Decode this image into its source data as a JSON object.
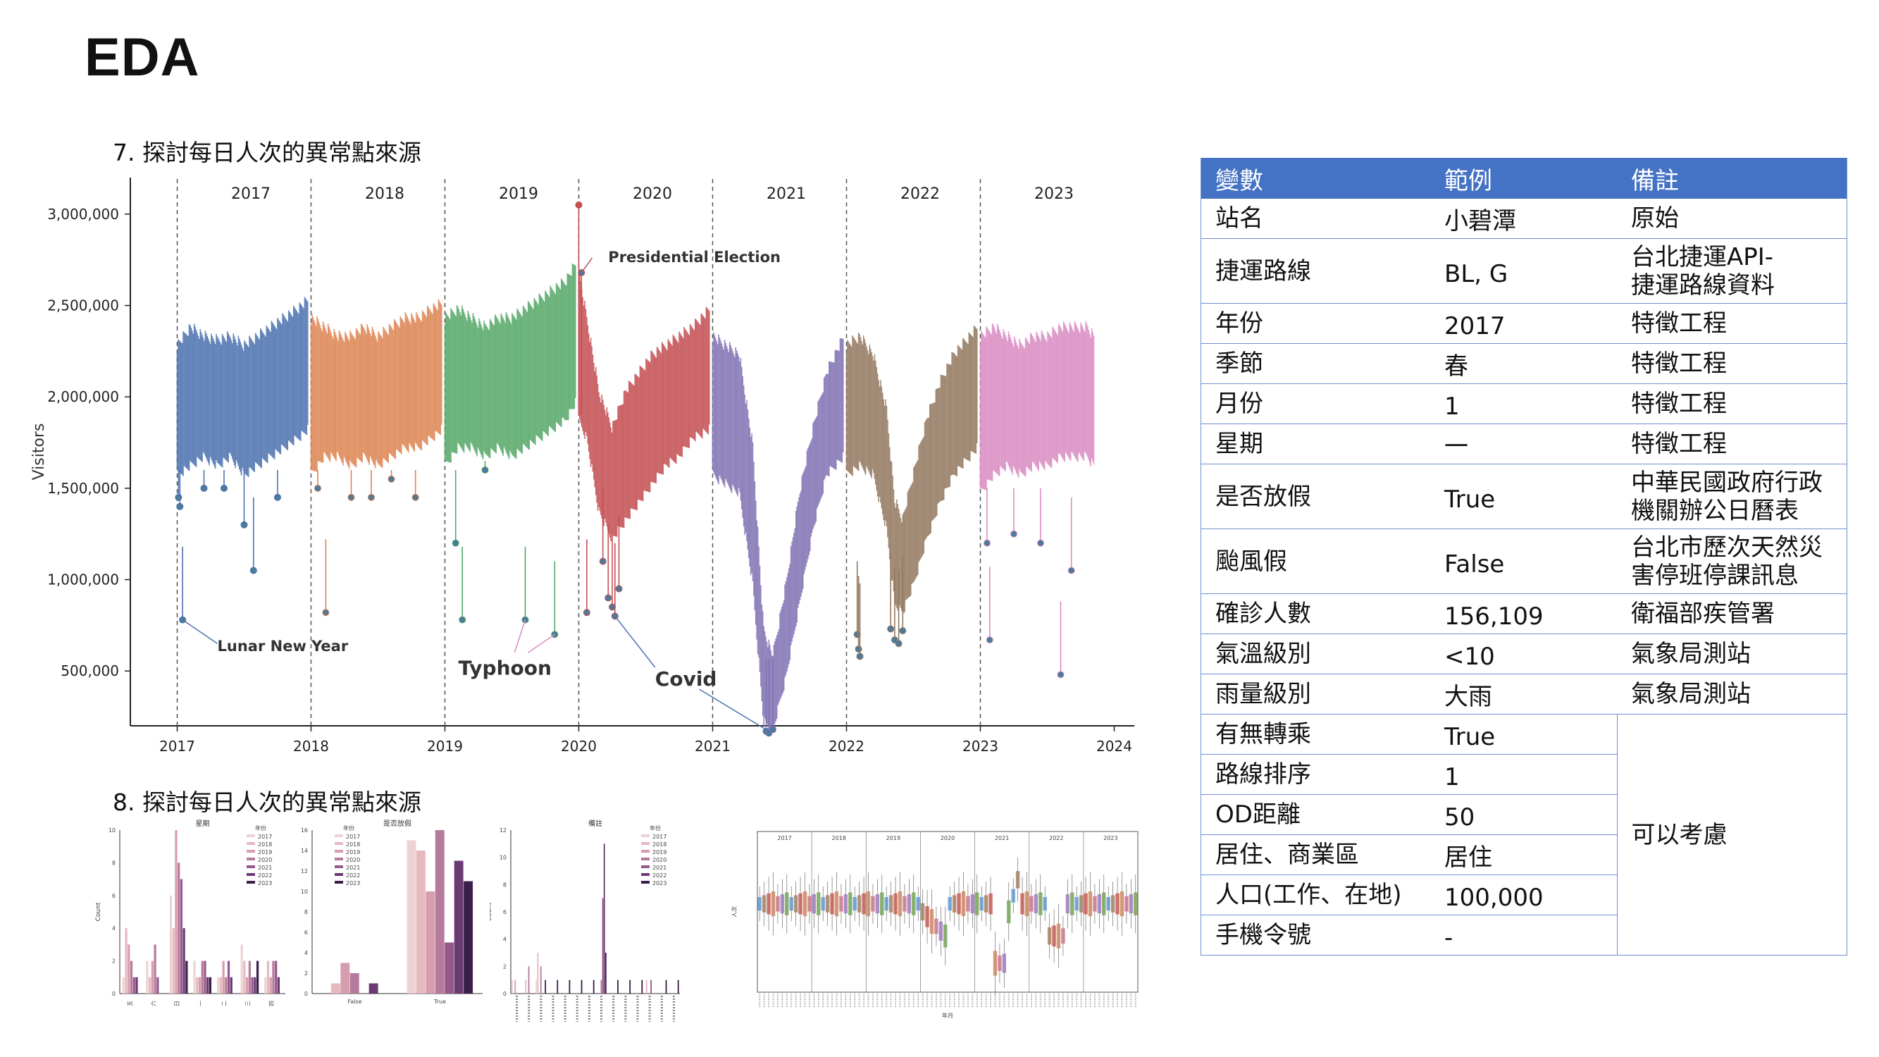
{
  "page": {
    "title": "EDA"
  },
  "section7": {
    "title": "7. 探討每日人次的異常點來源"
  },
  "section8": {
    "title": "8. 探討每日人次的異常點來源"
  },
  "chart_data": [
    {
      "type": "line",
      "ylabel": "Visitors",
      "xlabel": "",
      "x_ticks": [
        "2017",
        "2018",
        "2019",
        "2020",
        "2021",
        "2022",
        "2023",
        "2024"
      ],
      "year_labels": [
        "2017",
        "2018",
        "2019",
        "2020",
        "2021",
        "2022",
        "2023"
      ],
      "y_ticks": [
        "500,000",
        "1,000,000",
        "1,500,000",
        "2,000,000",
        "2,500,000",
        "3,000,000"
      ],
      "ylim": [
        200000,
        3200000
      ],
      "xlim": [
        2016.65,
        2024.15
      ],
      "series": [
        {
          "name": "2017",
          "color": "#4c72b0",
          "band": [
            [
              2017.0,
              1600000,
              2250000
            ],
            [
              2017.1,
              1650000,
              2350000
            ],
            [
              2017.2,
              1700000,
              2300000
            ],
            [
              2017.3,
              1650000,
              2280000
            ],
            [
              2017.4,
              1700000,
              2300000
            ],
            [
              2017.5,
              1600000,
              2250000
            ],
            [
              2017.6,
              1650000,
              2300000
            ],
            [
              2017.7,
              1700000,
              2350000
            ],
            [
              2017.8,
              1750000,
              2400000
            ],
            [
              2017.9,
              1800000,
              2450000
            ],
            [
              2017.98,
              1850000,
              2500000
            ]
          ],
          "outliers": [
            [
              2017.01,
              1450000
            ],
            [
              2017.02,
              1400000
            ],
            [
              2017.04,
              780000
            ],
            [
              2017.2,
              1500000
            ],
            [
              2017.35,
              1500000
            ],
            [
              2017.5,
              1300000
            ],
            [
              2017.57,
              1050000
            ],
            [
              2017.75,
              1450000
            ]
          ]
        },
        {
          "name": "2018",
          "color": "#dd8452",
          "band": [
            [
              2018.0,
              1600000,
              2400000
            ],
            [
              2018.1,
              1700000,
              2350000
            ],
            [
              2018.2,
              1700000,
              2300000
            ],
            [
              2018.3,
              1650000,
              2300000
            ],
            [
              2018.4,
              1700000,
              2350000
            ],
            [
              2018.5,
              1650000,
              2300000
            ],
            [
              2018.6,
              1700000,
              2350000
            ],
            [
              2018.7,
              1750000,
              2400000
            ],
            [
              2018.8,
              1750000,
              2400000
            ],
            [
              2018.9,
              1800000,
              2450000
            ],
            [
              2018.98,
              1850000,
              2480000
            ]
          ],
          "outliers": [
            [
              2018.05,
              1500000
            ],
            [
              2018.11,
              820000
            ],
            [
              2018.3,
              1450000
            ],
            [
              2018.45,
              1450000
            ],
            [
              2018.6,
              1550000
            ],
            [
              2018.78,
              1450000
            ]
          ]
        },
        {
          "name": "2019",
          "color": "#55a868",
          "band": [
            [
              2019.0,
              1650000,
              2400000
            ],
            [
              2019.1,
              1750000,
              2450000
            ],
            [
              2019.2,
              1750000,
              2400000
            ],
            [
              2019.3,
              1700000,
              2350000
            ],
            [
              2019.4,
              1750000,
              2400000
            ],
            [
              2019.5,
              1700000,
              2400000
            ],
            [
              2019.6,
              1750000,
              2450000
            ],
            [
              2019.7,
              1800000,
              2500000
            ],
            [
              2019.8,
              1850000,
              2550000
            ],
            [
              2019.9,
              1900000,
              2600000
            ],
            [
              2019.98,
              2000000,
              2700000
            ]
          ],
          "outliers": [
            [
              2019.08,
              1200000
            ],
            [
              2019.13,
              780000
            ],
            [
              2019.3,
              1600000
            ],
            [
              2019.6,
              780000
            ],
            [
              2019.82,
              700000
            ]
          ]
        },
        {
          "name": "2020",
          "color": "#c44e52",
          "band": [
            [
              2020.0,
              1900000,
              2650000
            ],
            [
              2020.06,
              1800000,
              2400000
            ],
            [
              2020.15,
              1400000,
              2000000
            ],
            [
              2020.25,
              1250000,
              1800000
            ],
            [
              2020.35,
              1350000,
              2000000
            ],
            [
              2020.45,
              1450000,
              2100000
            ],
            [
              2020.55,
              1550000,
              2200000
            ],
            [
              2020.65,
              1650000,
              2250000
            ],
            [
              2020.75,
              1700000,
              2300000
            ],
            [
              2020.85,
              1800000,
              2350000
            ],
            [
              2020.98,
              1850000,
              2450000
            ]
          ],
          "outliers": [
            [
              2020.0,
              3050000
            ],
            [
              2020.02,
              2680000
            ],
            [
              2020.06,
              820000
            ],
            [
              2020.18,
              1100000
            ],
            [
              2020.22,
              900000
            ],
            [
              2020.25,
              850000
            ],
            [
              2020.27,
              800000
            ],
            [
              2020.3,
              950000
            ]
          ]
        },
        {
          "name": "2021",
          "color": "#8172b3",
          "band": [
            [
              2021.0,
              1600000,
              2300000
            ],
            [
              2021.1,
              1550000,
              2250000
            ],
            [
              2021.2,
              1500000,
              2200000
            ],
            [
              2021.3,
              1000000,
              1700000
            ],
            [
              2021.38,
              250000,
              700000
            ],
            [
              2021.45,
              200000,
              550000
            ],
            [
              2021.55,
              500000,
              950000
            ],
            [
              2021.65,
              900000,
              1450000
            ],
            [
              2021.75,
              1300000,
              1800000
            ],
            [
              2021.85,
              1600000,
              2100000
            ],
            [
              2021.98,
              1700000,
              2300000
            ]
          ],
          "outliers": [
            [
              2021.4,
              170000
            ],
            [
              2021.42,
              160000
            ],
            [
              2021.45,
              180000
            ]
          ]
        },
        {
          "name": "2022",
          "color": "#937860",
          "band": [
            [
              2022.0,
              1600000,
              2250000
            ],
            [
              2022.1,
              1650000,
              2300000
            ],
            [
              2022.2,
              1600000,
              2200000
            ],
            [
              2022.3,
              1300000,
              1900000
            ],
            [
              2022.36,
              900000,
              1400000
            ],
            [
              2022.42,
              850000,
              1300000
            ],
            [
              2022.5,
              1000000,
              1550000
            ],
            [
              2022.6,
              1250000,
              1850000
            ],
            [
              2022.7,
              1450000,
              2050000
            ],
            [
              2022.8,
              1600000,
              2200000
            ],
            [
              2022.98,
              1750000,
              2350000
            ]
          ],
          "outliers": [
            [
              2022.08,
              700000
            ],
            [
              2022.09,
              620000
            ],
            [
              2022.1,
              580000
            ],
            [
              2022.33,
              730000
            ],
            [
              2022.36,
              670000
            ],
            [
              2022.39,
              650000
            ],
            [
              2022.42,
              720000
            ]
          ]
        },
        {
          "name": "2023",
          "color": "#da8bc3",
          "band": [
            [
              2023.0,
              1500000,
              2300000
            ],
            [
              2023.1,
              1600000,
              2350000
            ],
            [
              2023.2,
              1650000,
              2300000
            ],
            [
              2023.3,
              1600000,
              2250000
            ],
            [
              2023.4,
              1650000,
              2300000
            ],
            [
              2023.5,
              1650000,
              2300000
            ],
            [
              2023.6,
              1700000,
              2350000
            ],
            [
              2023.7,
              1700000,
              2350000
            ],
            [
              2023.8,
              1700000,
              2350000
            ],
            [
              2023.85,
              1650000,
              2300000
            ]
          ],
          "outliers": [
            [
              2023.05,
              1200000
            ],
            [
              2023.07,
              670000
            ],
            [
              2023.25,
              1250000
            ],
            [
              2023.45,
              1200000
            ],
            [
              2023.6,
              480000
            ],
            [
              2023.68,
              1050000
            ]
          ]
        }
      ],
      "annotations": [
        {
          "text": "Presidential Election",
          "x": 2020.0,
          "y": 3050000
        },
        {
          "text": "Lunar New Year",
          "x": 2017.04,
          "y": 780000
        },
        {
          "text": "Typhoon",
          "x": 2019.6,
          "y": 780000
        },
        {
          "text": "Covid",
          "x": 2020.27,
          "y": 800000
        }
      ]
    }
  ],
  "thumbnails": [
    {
      "title": "星期",
      "ylabel": "Count",
      "legend_title": "年份",
      "legend": [
        "2017",
        "2018",
        "2019",
        "2020",
        "2021",
        "2022",
        "2023"
      ],
      "categories": [
        "五",
        "六",
        "日",
        "一",
        "二",
        "三",
        "四"
      ]
    },
    {
      "title": "是否放假",
      "ylabel": "Count",
      "legend_title": "年份",
      "legend": [
        "2017",
        "2018",
        "2019",
        "2020",
        "2021",
        "2022",
        "2023"
      ],
      "categories": [
        "False",
        "True"
      ]
    },
    {
      "title": "備註",
      "ylabel": "Count",
      "legend_title": "年份",
      "legend": [
        "2017",
        "2018",
        "2019",
        "2020",
        "2021",
        "2022",
        "2023"
      ]
    },
    {
      "title": "",
      "ylabel": "人次",
      "xlabel": "年月",
      "years": [
        "2017",
        "2018",
        "2019",
        "2020",
        "2021",
        "2022",
        "2023"
      ]
    }
  ],
  "table": {
    "headers": [
      "變數",
      "範例",
      "備註"
    ],
    "rows": [
      {
        "var": "站名",
        "example": "小碧潭",
        "note": "原始"
      },
      {
        "var": "捷運路線",
        "example": "BL, G",
        "note": "台北捷運API-\n捷運路線資料"
      },
      {
        "var": "年份",
        "example": "2017",
        "note": "特徵工程"
      },
      {
        "var": "季節",
        "example": "春",
        "note": "特徵工程"
      },
      {
        "var": "月份",
        "example": "1",
        "note": "特徵工程"
      },
      {
        "var": "星期",
        "example": "一",
        "note": "特徵工程"
      },
      {
        "var": "是否放假",
        "example": "True",
        "note": "中華民國政府行政\n機關辦公日曆表"
      },
      {
        "var": "颱風假",
        "example": "False",
        "note": "台北市歷次天然災\n害停班停課訊息"
      },
      {
        "var": "確診人數",
        "example": "156,109",
        "note": "衛福部疾管署"
      },
      {
        "var": "氣溫級別",
        "example": "<10",
        "note": "氣象局測站"
      },
      {
        "var": "雨量級別",
        "example": "大雨",
        "note": "氣象局測站"
      },
      {
        "var": "有無轉乘",
        "example": "True"
      },
      {
        "var": "路線排序",
        "example": "1"
      },
      {
        "var": "OD距離",
        "example": "50"
      },
      {
        "var": "居住、商業區",
        "example": "居住"
      },
      {
        "var": "人口(工作、在地)",
        "example": "100,000"
      },
      {
        "var": "手機令號",
        "example": "-"
      }
    ],
    "merged_note": "可以考慮"
  }
}
